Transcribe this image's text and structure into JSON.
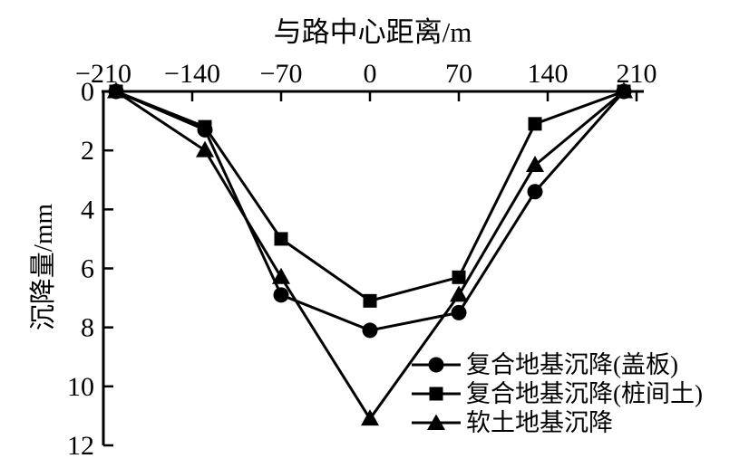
{
  "figure": {
    "background": "#ffffff",
    "ink_color": "#000000"
  },
  "chart_data": {
    "type": "line",
    "xlabel": "与路中心距离/m",
    "ylabel": "沉降量/mm",
    "x_axis_position": "top",
    "y_axis_inverted": true,
    "grid": false,
    "xlim": [
      -210,
      210
    ],
    "ylim": [
      0,
      12
    ],
    "x_ticks": [
      -210,
      -140,
      -70,
      0,
      70,
      140,
      210
    ],
    "x_tick_labels": [
      "−210",
      "−140",
      "−70",
      "0",
      "70",
      "140",
      "210"
    ],
    "y_ticks": [
      0,
      2,
      4,
      6,
      8,
      10,
      12
    ],
    "y_tick_labels": [
      "0",
      "2",
      "4",
      "6",
      "8",
      "10",
      "12"
    ],
    "x": [
      -200,
      -130,
      -70,
      0,
      70,
      130,
      200
    ],
    "series": [
      {
        "key": "composite-cover-plate",
        "name": "复合地基沉降(盖板)",
        "marker": "circle",
        "values": [
          0,
          1.3,
          6.9,
          8.1,
          7.5,
          3.4,
          0
        ]
      },
      {
        "key": "composite-pile-soil",
        "name": "复合地基沉降(桩间土)",
        "marker": "square",
        "values": [
          0,
          1.2,
          5.0,
          7.1,
          6.3,
          1.1,
          0
        ]
      },
      {
        "key": "soft-soil",
        "name": "软土地基沉降",
        "marker": "triangle",
        "values": [
          0,
          2.0,
          6.3,
          11.1,
          6.9,
          2.5,
          0
        ]
      }
    ],
    "legend_position": "inside-bottom-right",
    "line_color": "#000000",
    "marker_color": "#000000"
  }
}
